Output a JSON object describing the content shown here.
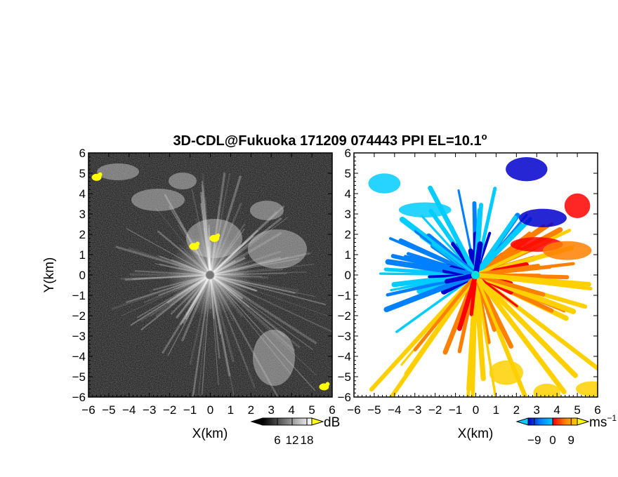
{
  "chart_data": {
    "title": "3D-CDL@Fukuoka 171209 074443 PPI EL=10.1",
    "title_degree": "o",
    "panels": [
      {
        "type": "heatmap",
        "variable": "echo intensity",
        "xlabel": "X(km)",
        "ylabel": "Y(km)",
        "xlim": [
          -6,
          6
        ],
        "ylim": [
          -6,
          6
        ],
        "xticks": [
          "-6",
          "-5",
          "-4",
          "-3",
          "-2",
          "-1",
          "0",
          "1",
          "2",
          "3",
          "4",
          "5",
          "6"
        ],
        "yticks": [
          "-6",
          "-5",
          "-4",
          "-3",
          "-2",
          "-1",
          "0",
          "1",
          "2",
          "3",
          "4",
          "5",
          "6"
        ],
        "colorbar": {
          "unit": "dB",
          "ticks": [
            "6",
            "12",
            "18"
          ],
          "range": [
            0,
            20
          ],
          "colors": [
            "#000000",
            "#ffffff"
          ],
          "over_color": "#ffff00"
        },
        "highlights": [
          {
            "x": -0.8,
            "y": 1.4,
            "value": "over"
          },
          {
            "x": 0.2,
            "y": 1.8,
            "value": "over"
          },
          {
            "x": -5.6,
            "y": 4.8,
            "value": "over"
          },
          {
            "x": 5.6,
            "y": -5.5,
            "value": "over"
          }
        ]
      },
      {
        "type": "heatmap",
        "variable": "Doppler velocity",
        "xlabel": "X(km)",
        "xlim": [
          -6,
          6
        ],
        "ylim": [
          -6,
          6
        ],
        "xticks": [
          "-6",
          "-5",
          "-4",
          "-3",
          "-2",
          "-1",
          "0",
          "1",
          "2",
          "3",
          "4",
          "5",
          "6"
        ],
        "yticks": [
          "-6",
          "-5",
          "-4",
          "-3",
          "-2",
          "-1",
          "0",
          "1",
          "2",
          "3",
          "4",
          "5",
          "6"
        ],
        "colorbar": {
          "unit": "ms",
          "unit_exp": "−1",
          "ticks": [
            "-9",
            "0",
            "9"
          ],
          "range": [
            -12,
            12
          ],
          "under_color": "#00ccff",
          "over_color": "#ffff00",
          "colors": [
            "#0000cc",
            "#0080ff",
            "#00ccff",
            "#ff0000",
            "#ff8000",
            "#ffd000"
          ]
        },
        "approaching_sector": "north-west",
        "receding_sector": "south-east"
      }
    ]
  }
}
